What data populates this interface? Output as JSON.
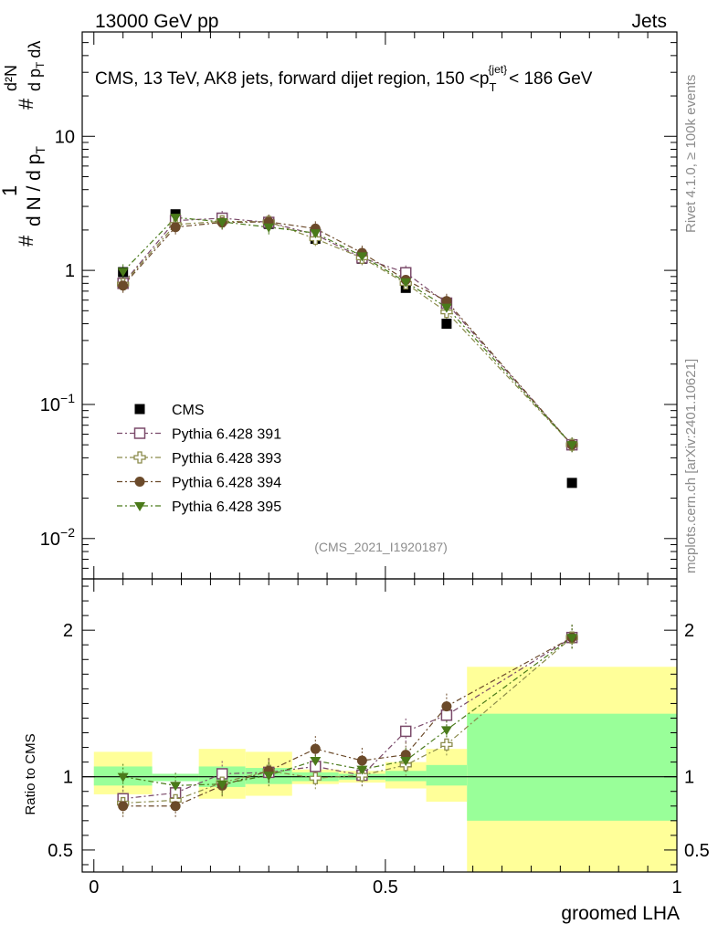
{
  "header": {
    "left": "13000 GeV pp",
    "right": "Jets"
  },
  "side_labels": {
    "rivet": "Rivet 4.1.0, ≥ 100k events",
    "mcplots": "mcplots.cern.ch [arXiv:2401.10621]"
  },
  "chart_data": [
    {
      "type": "scatter",
      "title": "CMS, 13 TeV, AK8 jets, forward dijet region, 150 <p_T^{jet}< 186 GeV",
      "title_parts": {
        "main": "CMS, 13 TeV, AK8 jets, forward dijet region, 150 <p",
        "sub": "T",
        "sup": "{jet}",
        "tail": "< 186 GeV"
      },
      "ylabel": "1/dN/dp_T d²N/dp_T dλ",
      "ylabel_parts": {
        "hash": "#",
        "one": "1",
        "denominator": "d N / d p",
        "t": "T",
        "d2n": "d²N",
        "dpt": "d p",
        "dlambda": "dλ"
      },
      "yscale": "log",
      "ylim": [
        0.005,
        60
      ],
      "xlim": [
        -0.02,
        1.0
      ],
      "ytick_labels": [
        {
          "value": 10,
          "text": "10"
        },
        {
          "value": 1,
          "text": "1"
        },
        {
          "value": 0.1,
          "base": "10",
          "exp": "−1"
        },
        {
          "value": 0.01,
          "base": "10",
          "exp": "−2"
        }
      ],
      "watermark": "(CMS_2021_I1920187)",
      "legend_position": "lower-left",
      "series": [
        {
          "name": "CMS",
          "marker": "filled-square",
          "color": "#000000",
          "x": [
            0.05,
            0.14,
            0.22,
            0.3,
            0.38,
            0.46,
            0.535,
            0.605,
            0.82
          ],
          "values": [
            0.97,
            2.62,
            2.42,
            2.22,
            1.72,
            1.22,
            0.74,
            0.4,
            0.026
          ]
        },
        {
          "name": "Pythia 6.428 391",
          "marker": "open-square",
          "color": "#7a4a6a",
          "x": [
            0.05,
            0.14,
            0.22,
            0.3,
            0.38,
            0.46,
            0.535,
            0.605,
            0.82
          ],
          "values": [
            0.8,
            2.35,
            2.45,
            2.28,
            1.85,
            1.24,
            0.96,
            0.57,
            0.05
          ]
        },
        {
          "name": "Pythia 6.428 393",
          "marker": "open-cross",
          "color": "#8a8a4a",
          "x": [
            0.05,
            0.14,
            0.22,
            0.3,
            0.38,
            0.46,
            0.535,
            0.605,
            0.82
          ],
          "values": [
            0.79,
            2.2,
            2.32,
            2.3,
            1.72,
            1.24,
            0.8,
            0.49,
            0.05
          ]
        },
        {
          "name": "Pythia 6.428 394",
          "marker": "filled-circle",
          "color": "#6b4a2a",
          "x": [
            0.05,
            0.14,
            0.22,
            0.3,
            0.38,
            0.46,
            0.535,
            0.605,
            0.82
          ],
          "values": [
            0.77,
            2.1,
            2.28,
            2.3,
            2.05,
            1.35,
            0.85,
            0.59,
            0.05
          ]
        },
        {
          "name": "Pythia 6.428 395",
          "marker": "filled-triangle-down",
          "color": "#4a7a1a",
          "x": [
            0.05,
            0.14,
            0.22,
            0.3,
            0.38,
            0.46,
            0.535,
            0.605,
            0.82
          ],
          "values": [
            0.98,
            2.48,
            2.3,
            2.1,
            1.9,
            1.28,
            0.82,
            0.53,
            0.05
          ]
        }
      ]
    },
    {
      "type": "scatter",
      "title": "",
      "xlabel": "groomed LHA",
      "ylabel": "Ratio to CMS",
      "ylim": [
        0.35,
        2.35
      ],
      "xlim": [
        -0.02,
        1.0
      ],
      "xticks": [
        0,
        0.5,
        1
      ],
      "xtick_labels": [
        "0",
        "0.5",
        "1"
      ],
      "yticks": [
        0.5,
        1,
        2
      ],
      "ytick_labels": [
        "0.5",
        "1",
        "2"
      ],
      "reference_line": 1,
      "bands": {
        "bin_edges": [
          0,
          0.1,
          0.18,
          0.26,
          0.34,
          0.42,
          0.5,
          0.57,
          0.64,
          1.0
        ],
        "green_low": [
          0.94,
          0.97,
          0.93,
          0.95,
          0.97,
          0.98,
          0.97,
          0.94,
          0.7
        ],
        "green_high": [
          1.07,
          1.02,
          1.07,
          1.06,
          1.03,
          1.02,
          1.04,
          1.08,
          1.43
        ],
        "yellow_low": [
          0.88,
          0.98,
          0.85,
          0.87,
          0.95,
          0.96,
          0.92,
          0.83,
          0.35
        ],
        "yellow_high": [
          1.17,
          1.02,
          1.19,
          1.17,
          1.05,
          1.04,
          1.1,
          1.19,
          1.75
        ]
      },
      "series": [
        {
          "name": "Pythia 6.428 391",
          "x": [
            0.05,
            0.14,
            0.22,
            0.3,
            0.38,
            0.46,
            0.535,
            0.605,
            0.82
          ],
          "values": [
            0.85,
            0.89,
            1.02,
            1.03,
            1.07,
            1.01,
            1.31,
            1.42,
            1.95
          ]
        },
        {
          "name": "Pythia 6.428 393",
          "x": [
            0.05,
            0.14,
            0.22,
            0.3,
            0.38,
            0.46,
            0.535,
            0.605,
            0.82
          ],
          "values": [
            0.82,
            0.84,
            0.96,
            1.04,
            0.99,
            1.01,
            1.08,
            1.22,
            1.95
          ]
        },
        {
          "name": "Pythia 6.428 394",
          "x": [
            0.05,
            0.14,
            0.22,
            0.3,
            0.38,
            0.46,
            0.535,
            0.605,
            0.82
          ],
          "values": [
            0.8,
            0.8,
            0.94,
            1.04,
            1.19,
            1.11,
            1.15,
            1.48,
            1.95
          ]
        },
        {
          "name": "Pythia 6.428 395",
          "x": [
            0.05,
            0.14,
            0.22,
            0.3,
            0.38,
            0.46,
            0.535,
            0.605,
            0.82
          ],
          "values": [
            1.0,
            0.94,
            0.95,
            1.01,
            1.11,
            1.05,
            1.11,
            1.32,
            1.95
          ]
        }
      ]
    }
  ]
}
